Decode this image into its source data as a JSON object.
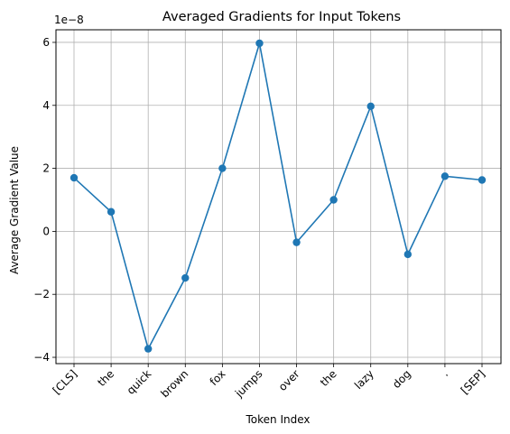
{
  "chart_data": {
    "type": "line",
    "title": "Averaged Gradients for Input Tokens",
    "xlabel": "Token Index",
    "ylabel": "Average Gradient Value",
    "y_scale_label": "1e−8",
    "categories": [
      "[CLS]",
      "the",
      "quick",
      "brown",
      "fox",
      "jumps",
      "over",
      "the",
      "lazy",
      "dog",
      ".",
      "[SEP]"
    ],
    "values": [
      1.7,
      0.62,
      -3.73,
      -1.48,
      2.0,
      5.97,
      -0.35,
      1.0,
      3.97,
      -0.73,
      1.75,
      1.63
    ],
    "y_ticks": [
      -4,
      -2,
      0,
      2,
      4,
      6
    ],
    "y_tick_labels": [
      "−4",
      "−2",
      "0",
      "2",
      "4",
      "6"
    ],
    "ylim": [
      -4.2,
      6.4
    ],
    "grid": true,
    "marker": "circle",
    "colors": {
      "series": "#1f77b4",
      "grid": "#b0b0b0",
      "axis": "#000000"
    }
  }
}
